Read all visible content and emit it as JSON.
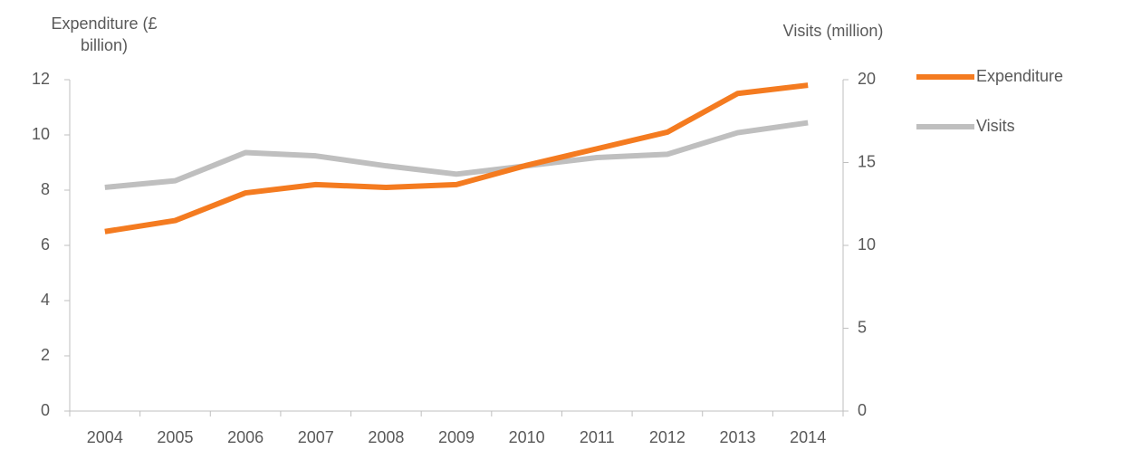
{
  "chart_data": {
    "type": "line",
    "y_label": "Expenditure (£ billion)",
    "y2_label": "Visits (million)",
    "categories": [
      "2004",
      "2005",
      "2006",
      "2007",
      "2008",
      "2009",
      "2010",
      "2011",
      "2012",
      "2013",
      "2014"
    ],
    "series": [
      {
        "name": "Expenditure",
        "color": "#f47b20",
        "values": [
          6.5,
          6.9,
          7.9,
          8.2,
          8.1,
          8.2,
          8.9,
          9.5,
          10.1,
          11.5,
          11.8
        ]
      },
      {
        "name": "Visits",
        "color": "#bfbfbf",
        "axis": "y2",
        "values": [
          13.5,
          13.9,
          15.6,
          15.4,
          14.8,
          14.3,
          14.8,
          15.3,
          15.5,
          16.8,
          17.4
        ]
      }
    ],
    "ylim": [
      0,
      12
    ],
    "yticks": [
      0,
      2,
      4,
      6,
      8,
      10,
      12
    ],
    "y2lim": [
      0,
      20
    ],
    "y2ticks": [
      0,
      5,
      10,
      15,
      20
    ],
    "grid": false,
    "legend": "right"
  }
}
